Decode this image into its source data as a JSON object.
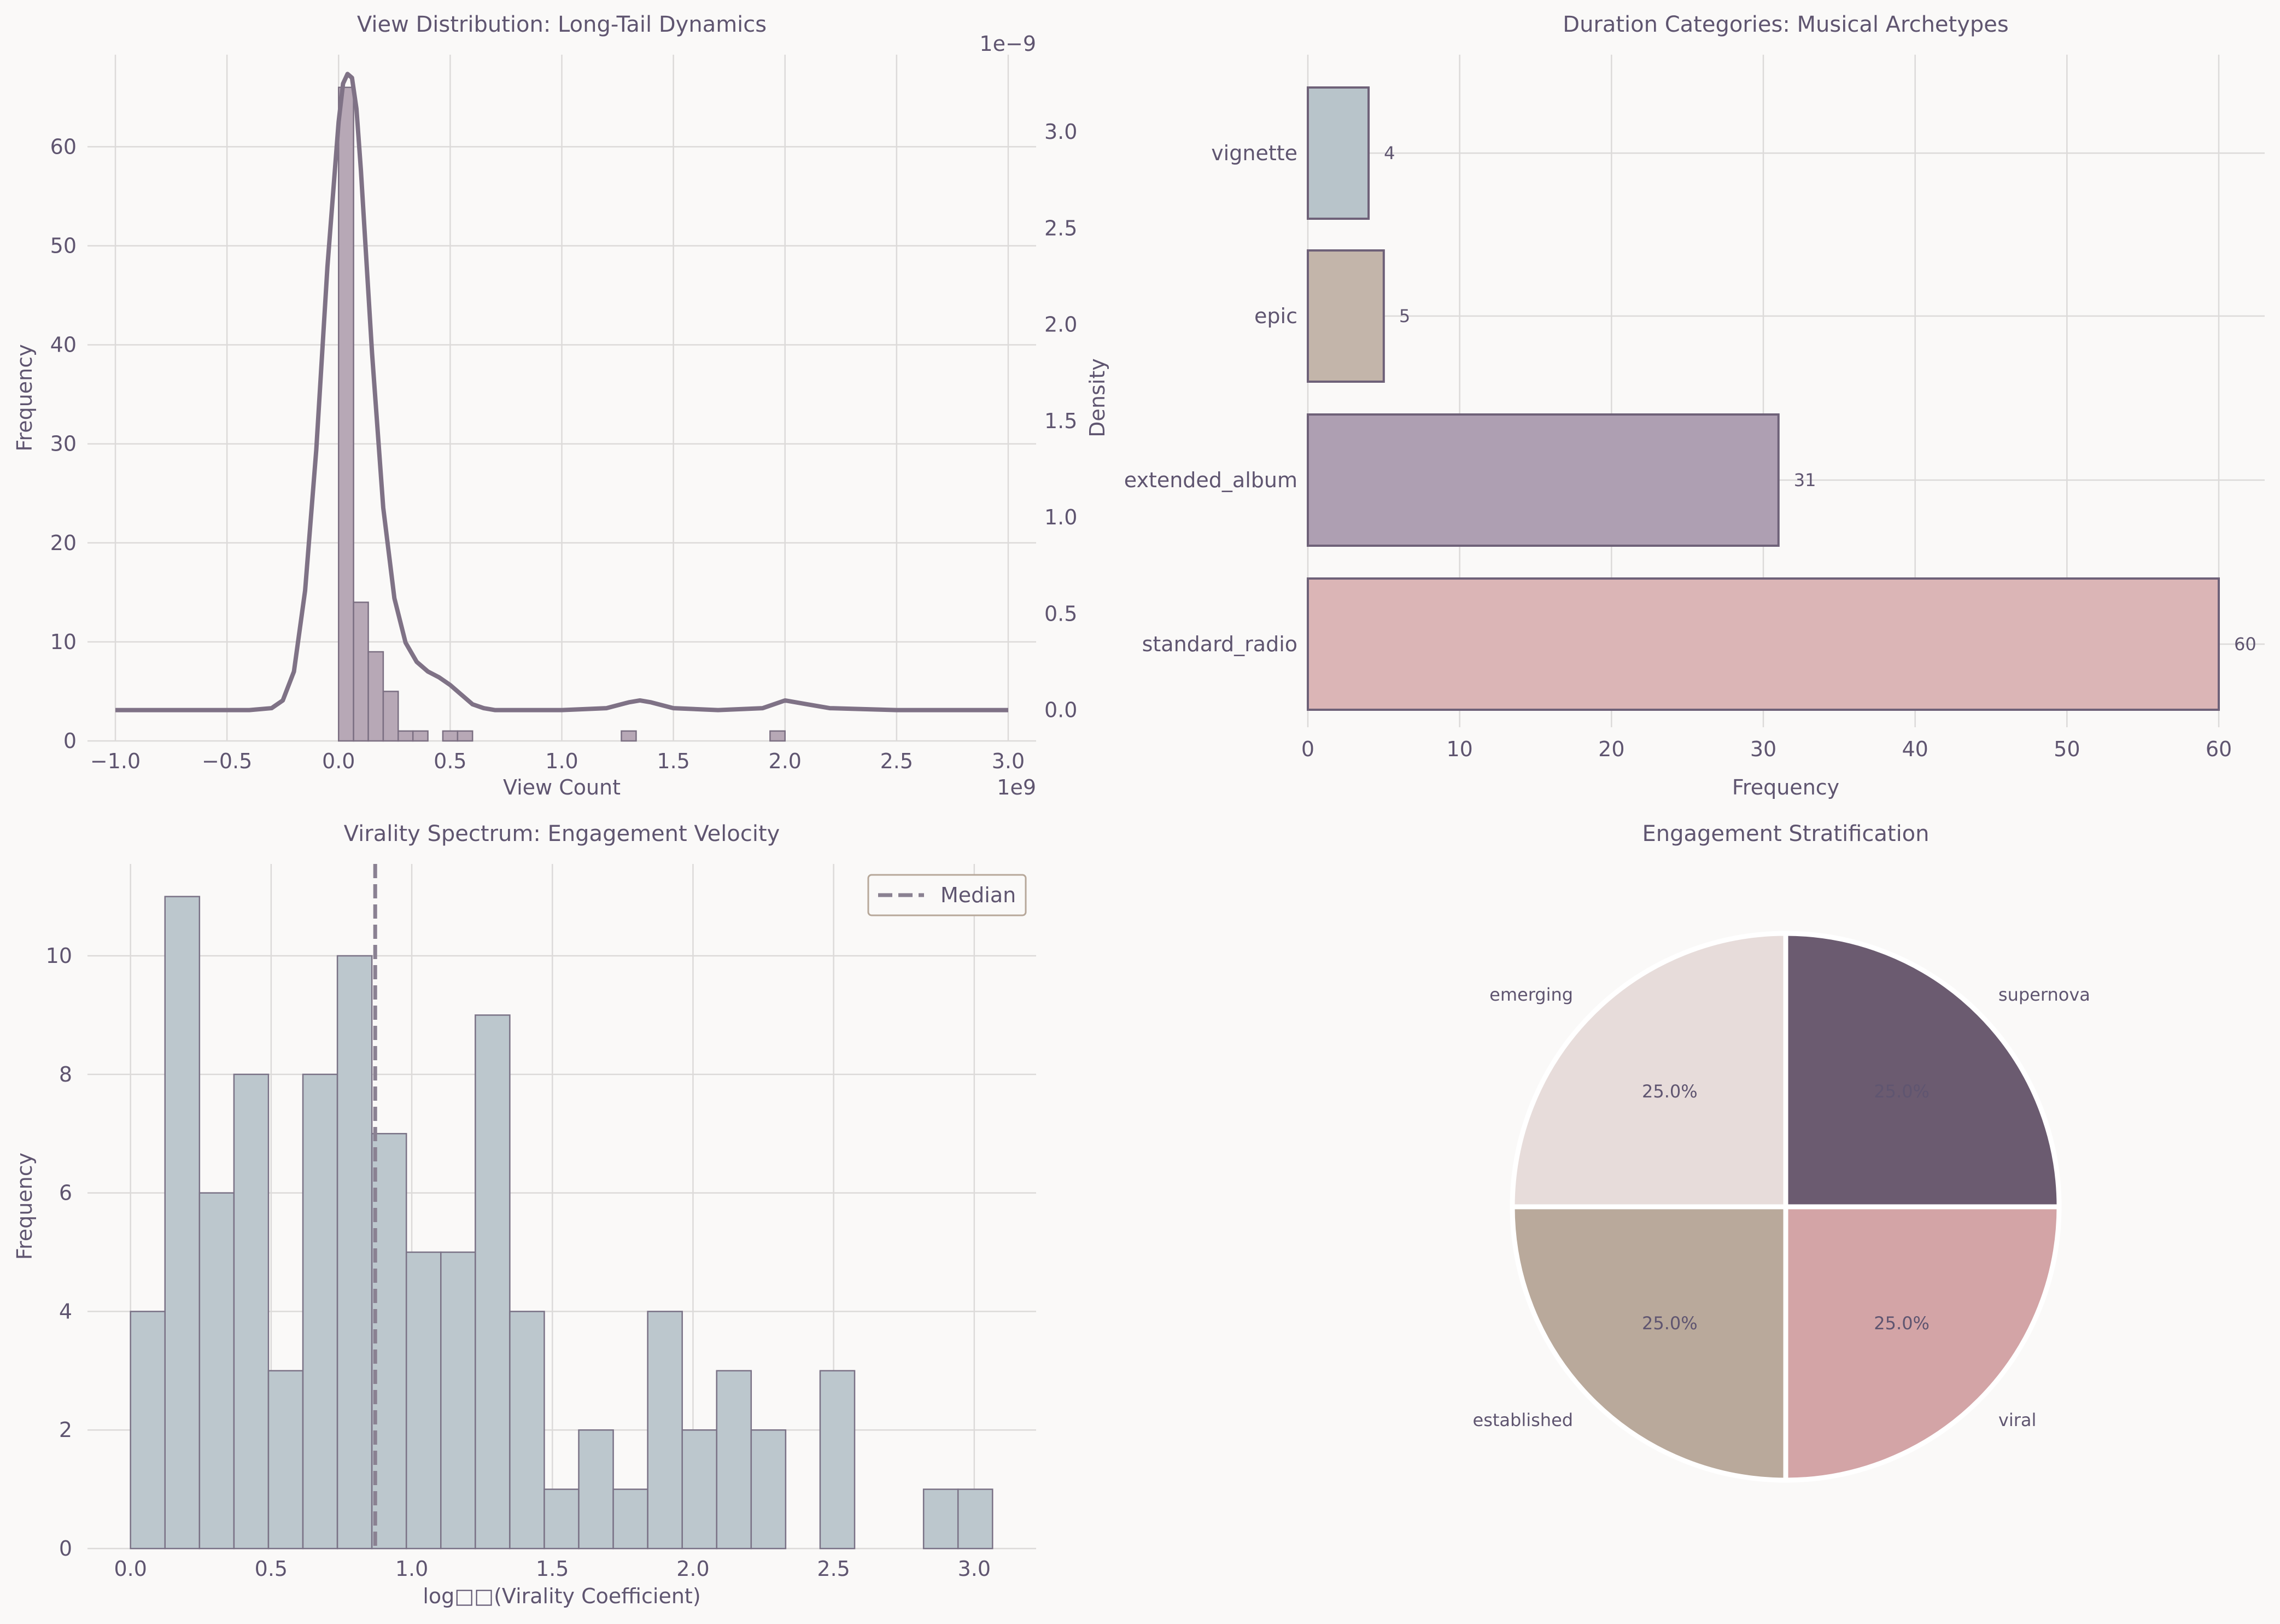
{
  "chart_data": [
    {
      "type": "histogram",
      "title": "View Distribution: Long-Tail Dynamics",
      "xlabel": "View Count",
      "ylabel": "Frequency",
      "ylabel2": "Density",
      "x_offset_label": "1e9",
      "y2_offset_label": "1e−9",
      "xlim": [
        -1.125,
        3.125
      ],
      "ylim": [
        0,
        69.3
      ],
      "y2lim": [
        -0.16,
        3.4
      ],
      "xticks": [
        -1.0,
        -0.5,
        0.0,
        0.5,
        1.0,
        1.5,
        2.0,
        2.5,
        3.0
      ],
      "xtick_labels": [
        "−1.0",
        "−0.5",
        "0.0",
        "0.5",
        "1.0",
        "1.5",
        "2.0",
        "2.5",
        "3.0"
      ],
      "yticks": [
        0,
        10,
        20,
        30,
        40,
        50,
        60
      ],
      "y2ticks": [
        0.0,
        0.5,
        1.0,
        1.5,
        2.0,
        2.5,
        3.0
      ],
      "y2tick_labels": [
        "0.0",
        "0.5",
        "1.0",
        "1.5",
        "2.0",
        "2.5",
        "3.0"
      ],
      "bins": [
        {
          "x0": 0.0,
          "x1": 0.067,
          "count": 66
        },
        {
          "x0": 0.067,
          "x1": 0.133,
          "count": 14
        },
        {
          "x0": 0.133,
          "x1": 0.2,
          "count": 9
        },
        {
          "x0": 0.2,
          "x1": 0.267,
          "count": 5
        },
        {
          "x0": 0.267,
          "x1": 0.333,
          "count": 1
        },
        {
          "x0": 0.333,
          "x1": 0.4,
          "count": 1
        },
        {
          "x0": 0.467,
          "x1": 0.533,
          "count": 1
        },
        {
          "x0": 0.533,
          "x1": 0.6,
          "count": 1
        },
        {
          "x0": 1.267,
          "x1": 1.333,
          "count": 1
        },
        {
          "x0": 1.933,
          "x1": 2.0,
          "count": 1
        }
      ],
      "kde": {
        "x": [
          -1.0,
          -0.5,
          -0.4,
          -0.3,
          -0.25,
          -0.2,
          -0.15,
          -0.1,
          -0.05,
          0.0,
          0.02,
          0.04,
          0.06,
          0.08,
          0.1,
          0.15,
          0.2,
          0.25,
          0.3,
          0.35,
          0.4,
          0.45,
          0.5,
          0.55,
          0.6,
          0.65,
          0.7,
          0.8,
          1.0,
          1.2,
          1.3,
          1.35,
          1.4,
          1.5,
          1.7,
          1.9,
          2.0,
          2.1,
          2.2,
          2.5,
          3.0
        ],
        "y": [
          0.0,
          0.0,
          0.0,
          0.01,
          0.05,
          0.2,
          0.62,
          1.35,
          2.3,
          3.05,
          3.25,
          3.3,
          3.28,
          3.12,
          2.8,
          1.85,
          1.05,
          0.58,
          0.35,
          0.25,
          0.2,
          0.17,
          0.13,
          0.08,
          0.03,
          0.01,
          0.0,
          0.0,
          0.0,
          0.01,
          0.04,
          0.05,
          0.04,
          0.01,
          0.0,
          0.01,
          0.05,
          0.03,
          0.01,
          0.0,
          0.0
        ]
      }
    },
    {
      "type": "bar",
      "orientation": "horizontal",
      "title": "Duration Categories: Musical Archetypes",
      "xlabel": "Frequency",
      "ylabel": "",
      "categories": [
        "vignette",
        "epic",
        "extended_album",
        "standard_radio"
      ],
      "values": [
        4,
        5,
        31,
        60
      ],
      "value_labels": [
        "4",
        "5",
        "31",
        "60"
      ],
      "colors": [
        "#b8c4ca",
        "#c3b5aa",
        "#ae9fb2",
        "#dbb5b6"
      ],
      "xlim": [
        -3,
        63
      ],
      "xticks": [
        0,
        10,
        20,
        30,
        40,
        50,
        60
      ]
    },
    {
      "type": "histogram",
      "title": "Virality Spectrum: Engagement Velocity",
      "xlabel": "log□□(Virality Coefficient)",
      "ylabel": "Frequency",
      "xlim": [
        -0.153,
        3.22
      ],
      "ylim": [
        0,
        11.55
      ],
      "xticks": [
        0.0,
        0.5,
        1.0,
        1.5,
        2.0,
        2.5,
        3.0
      ],
      "xtick_labels": [
        "0.0",
        "0.5",
        "1.0",
        "1.5",
        "2.0",
        "2.5",
        "3.0"
      ],
      "yticks": [
        0,
        2,
        4,
        6,
        8,
        10
      ],
      "bin_start": 0.0,
      "bin_width": 0.1226,
      "counts": [
        4,
        11,
        6,
        8,
        3,
        8,
        10,
        7,
        5,
        5,
        9,
        4,
        1,
        2,
        1,
        4,
        2,
        3,
        2,
        0,
        3,
        0,
        0,
        1,
        1
      ],
      "median": 0.87,
      "legend": [
        "Median"
      ]
    },
    {
      "type": "pie",
      "title": "Engagement Stratification",
      "labels": [
        "supernova",
        "viral",
        "established",
        "emerging"
      ],
      "values": [
        25,
        25,
        25,
        25
      ],
      "pct_labels": [
        "25.0%",
        "25.0%",
        "25.0%",
        "25.0%"
      ],
      "colors": [
        "#6b5b70",
        "#d3a4a6",
        "#b9a99b",
        "#e7dcda"
      ]
    }
  ]
}
